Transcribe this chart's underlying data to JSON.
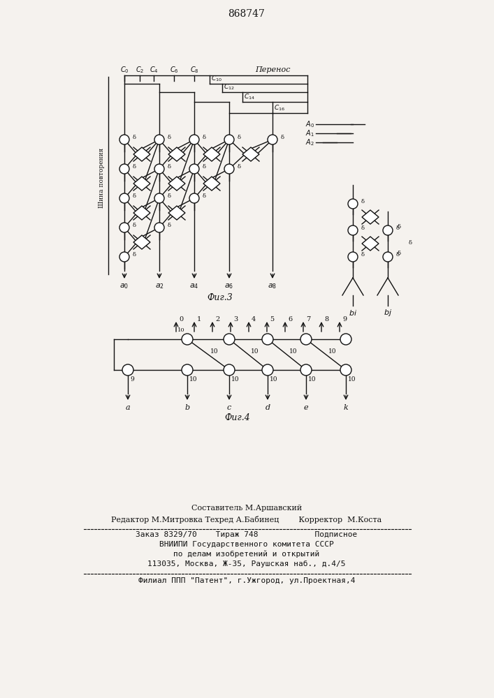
{
  "title_number": "868747",
  "fig3_label": "Фиг.3",
  "fig4_label": "Фиг.4",
  "perenos_label": "Перенос",
  "shina_label": "Шина повторения",
  "footer_line1": "Составитель М.Аршавский",
  "footer_line2": "Редактор М.Митровка Техред А.Бабинец        Корректор  М.Коста",
  "footer_line3": "Заказ 8329/70    Тираж 748            Подписное",
  "footer_line4": "ВНИИПИ Государственного комитета СССР",
  "footer_line5": "по делам изобретений и открытий",
  "footer_line6": "113035, Москва, Ж-35, Раушская наб., д.4/5",
  "footer_line7": "Филиал ППП \"Патент\", г.Ужгород, ул.Проектная,4",
  "bg_color": "#f5f2ee"
}
